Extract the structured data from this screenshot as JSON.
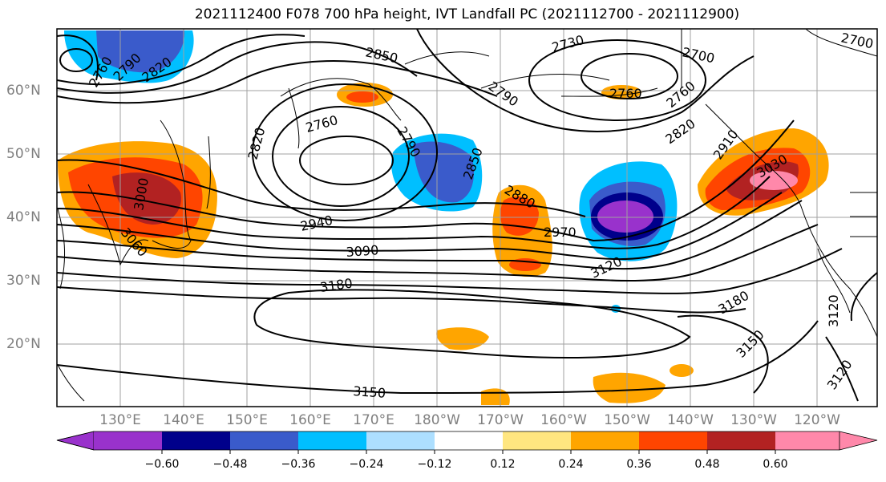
{
  "title": "2021112400 F078 700 hPa height, IVT Landfall PC (2021112700 - 2021112900)",
  "lat_labels": [
    "60°N",
    "50°N",
    "40°N",
    "30°N",
    "20°N"
  ],
  "lon_labels": [
    "130°E",
    "140°E",
    "150°E",
    "160°E",
    "170°E",
    "180°W",
    "170°W",
    "160°W",
    "150°W",
    "140°W",
    "130°W",
    "120°W"
  ],
  "contour_labels": [
    "2760",
    "2790",
    "2820",
    "2850",
    "2730",
    "2700",
    "2790",
    "2760",
    "2760",
    "2820",
    "2760",
    "2790",
    "2850",
    "2880",
    "2970",
    "2940",
    "3090",
    "3180",
    "3120",
    "3180",
    "3150",
    "3150",
    "3120",
    "3030",
    "3000",
    "3060",
    "2910",
    "2820",
    "2700"
  ],
  "colorbar": {
    "ticks": [
      "−0.60",
      "−0.48",
      "−0.36",
      "−0.24",
      "−0.12",
      "0.12",
      "0.24",
      "0.36",
      "0.48",
      "0.60"
    ],
    "colors": [
      "#9932CC",
      "#00008B",
      "#3A5BCB",
      "#00BFFF",
      "#ADDFFF",
      "#FFFFFF",
      "#FFE680",
      "#FFA500",
      "#FF4500",
      "#B22222",
      "#FF88AA"
    ]
  }
}
